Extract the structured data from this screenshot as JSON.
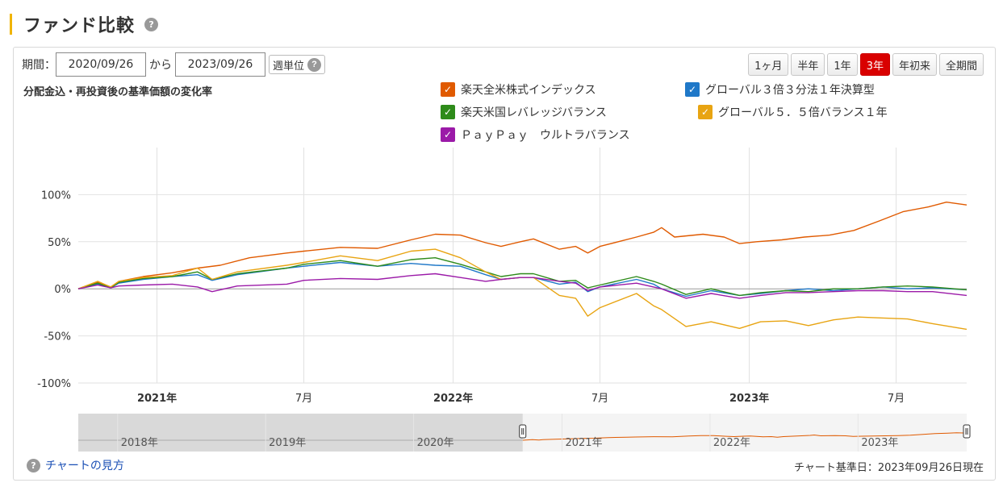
{
  "page_title": "ファンド比較",
  "help_glyph": "?",
  "period": {
    "label": "期間：",
    "start": "2020/09/26",
    "separator": "から",
    "end": "2023/09/26",
    "weekly_label": "週単位"
  },
  "range_buttons": [
    {
      "label": "1ヶ月",
      "active": false
    },
    {
      "label": "半年",
      "active": false
    },
    {
      "label": "1年",
      "active": false
    },
    {
      "label": "3年",
      "active": true
    },
    {
      "label": "年初来",
      "active": false
    },
    {
      "label": "全期間",
      "active": false
    }
  ],
  "chart_subtitle": "分配金込・再投資後の基準価額の変化率",
  "legend_check": "✓",
  "legend": [
    {
      "name": "楽天全米株式インデックス",
      "color": "#e05a00"
    },
    {
      "name": "グローバル３倍３分法１年決算型",
      "color": "#1f78c8"
    },
    {
      "name": "楽天米国レバレッジバランス",
      "color": "#2e8b1a"
    },
    {
      "name": "グローバル５．５倍バランス１年",
      "color": "#e8a412"
    },
    {
      "name": "ＰａｙＰａｙ　ウルトラバランス",
      "color": "#9b1aa8"
    }
  ],
  "chart_data": {
    "type": "line",
    "y_unit": "%",
    "ylim": [
      -100,
      150
    ],
    "y_ticks": [
      100,
      50,
      0,
      -50,
      -100
    ],
    "y_tick_labels": [
      "100%",
      "50%",
      "0%",
      "-50%",
      "-100%"
    ],
    "x_range": [
      "2020-09-26",
      "2023-09-26"
    ],
    "x_ticks": [
      {
        "date": "2021-01-01",
        "label": "2021年",
        "bold": true
      },
      {
        "date": "2021-07-01",
        "label": "7月",
        "bold": false
      },
      {
        "date": "2022-01-01",
        "label": "2022年",
        "bold": true
      },
      {
        "date": "2022-07-01",
        "label": "7月",
        "bold": false
      },
      {
        "date": "2023-01-01",
        "label": "2023年",
        "bold": true
      },
      {
        "date": "2023-07-01",
        "label": "7月",
        "bold": false
      }
    ],
    "grid": true,
    "series": [
      {
        "name": "楽天全米株式インデックス",
        "color": "#e05a00",
        "points": [
          [
            "2020-09-26",
            0
          ],
          [
            "2020-10-20",
            7
          ],
          [
            "2020-11-05",
            2
          ],
          [
            "2020-11-15",
            8
          ],
          [
            "2020-12-15",
            13
          ],
          [
            "2021-01-20",
            17
          ],
          [
            "2021-02-20",
            22
          ],
          [
            "2021-03-20",
            25
          ],
          [
            "2021-04-25",
            33
          ],
          [
            "2021-06-10",
            38
          ],
          [
            "2021-07-01",
            40
          ],
          [
            "2021-08-15",
            44
          ],
          [
            "2021-09-30",
            43
          ],
          [
            "2021-11-10",
            52
          ],
          [
            "2021-12-10",
            58
          ],
          [
            "2022-01-10",
            57
          ],
          [
            "2022-02-10",
            49
          ],
          [
            "2022-03-01",
            45
          ],
          [
            "2022-03-25",
            50
          ],
          [
            "2022-04-10",
            53
          ],
          [
            "2022-05-12",
            42
          ],
          [
            "2022-06-01",
            45
          ],
          [
            "2022-06-16",
            38
          ],
          [
            "2022-07-01",
            45
          ],
          [
            "2022-08-15",
            55
          ],
          [
            "2022-09-05",
            60
          ],
          [
            "2022-09-15",
            65
          ],
          [
            "2022-10-01",
            55
          ],
          [
            "2022-11-05",
            58
          ],
          [
            "2022-12-01",
            55
          ],
          [
            "2022-12-20",
            48
          ],
          [
            "2023-01-10",
            50
          ],
          [
            "2023-02-10",
            52
          ],
          [
            "2023-03-10",
            55
          ],
          [
            "2023-04-10",
            57
          ],
          [
            "2023-05-10",
            62
          ],
          [
            "2023-06-10",
            72
          ],
          [
            "2023-07-10",
            82
          ],
          [
            "2023-08-10",
            87
          ],
          [
            "2023-09-01",
            92
          ],
          [
            "2023-09-26",
            89
          ]
        ]
      },
      {
        "name": "グローバル３倍３分法１年決算型",
        "color": "#1f78c8",
        "points": [
          [
            "2020-09-26",
            0
          ],
          [
            "2020-10-20",
            5
          ],
          [
            "2020-11-05",
            1
          ],
          [
            "2020-11-15",
            6
          ],
          [
            "2020-12-15",
            10
          ],
          [
            "2021-01-20",
            13
          ],
          [
            "2021-02-20",
            15
          ],
          [
            "2021-03-10",
            9
          ],
          [
            "2021-04-10",
            15
          ],
          [
            "2021-06-10",
            22
          ],
          [
            "2021-07-01",
            24
          ],
          [
            "2021-08-15",
            28
          ],
          [
            "2021-09-30",
            24
          ],
          [
            "2021-11-10",
            27
          ],
          [
            "2021-12-10",
            25
          ],
          [
            "2022-01-10",
            24
          ],
          [
            "2022-02-10",
            15
          ],
          [
            "2022-03-01",
            10
          ],
          [
            "2022-03-25",
            12
          ],
          [
            "2022-04-10",
            12
          ],
          [
            "2022-05-12",
            5
          ],
          [
            "2022-06-01",
            7
          ],
          [
            "2022-06-16",
            -3
          ],
          [
            "2022-07-01",
            2
          ],
          [
            "2022-08-15",
            10
          ],
          [
            "2022-09-05",
            5
          ],
          [
            "2022-09-15",
            0
          ],
          [
            "2022-10-15",
            -8
          ],
          [
            "2022-11-15",
            -2
          ],
          [
            "2022-12-20",
            -7
          ],
          [
            "2023-01-15",
            -5
          ],
          [
            "2023-02-15",
            -2
          ],
          [
            "2023-03-15",
            0
          ],
          [
            "2023-04-15",
            -2
          ],
          [
            "2023-05-15",
            0
          ],
          [
            "2023-06-15",
            2
          ],
          [
            "2023-07-15",
            0
          ],
          [
            "2023-08-15",
            1
          ],
          [
            "2023-09-26",
            -1
          ]
        ]
      },
      {
        "name": "楽天米国レバレッジバランス",
        "color": "#2e8b1a",
        "points": [
          [
            "2020-09-26",
            0
          ],
          [
            "2020-10-20",
            6
          ],
          [
            "2020-11-05",
            1
          ],
          [
            "2020-11-15",
            7
          ],
          [
            "2020-12-15",
            11
          ],
          [
            "2021-01-20",
            13
          ],
          [
            "2021-02-20",
            18
          ],
          [
            "2021-03-10",
            10
          ],
          [
            "2021-04-10",
            16
          ],
          [
            "2021-06-10",
            22
          ],
          [
            "2021-07-01",
            26
          ],
          [
            "2021-08-15",
            30
          ],
          [
            "2021-09-30",
            24
          ],
          [
            "2021-11-10",
            31
          ],
          [
            "2021-12-10",
            33
          ],
          [
            "2022-01-10",
            26
          ],
          [
            "2022-02-10",
            18
          ],
          [
            "2022-03-01",
            13
          ],
          [
            "2022-03-25",
            16
          ],
          [
            "2022-04-10",
            16
          ],
          [
            "2022-05-12",
            8
          ],
          [
            "2022-06-01",
            9
          ],
          [
            "2022-06-16",
            1
          ],
          [
            "2022-07-01",
            4
          ],
          [
            "2022-08-15",
            13
          ],
          [
            "2022-09-05",
            8
          ],
          [
            "2022-09-15",
            5
          ],
          [
            "2022-10-15",
            -6
          ],
          [
            "2022-11-15",
            0
          ],
          [
            "2022-12-20",
            -7
          ],
          [
            "2023-01-15",
            -4
          ],
          [
            "2023-02-15",
            -2
          ],
          [
            "2023-03-15",
            -3
          ],
          [
            "2023-04-15",
            0
          ],
          [
            "2023-05-15",
            0
          ],
          [
            "2023-06-15",
            2
          ],
          [
            "2023-07-15",
            3
          ],
          [
            "2023-08-15",
            2
          ],
          [
            "2023-09-26",
            -1
          ]
        ]
      },
      {
        "name": "グローバル５．５倍バランス１年",
        "color": "#e8a412",
        "points": [
          [
            "2020-09-26",
            0
          ],
          [
            "2020-10-20",
            8
          ],
          [
            "2020-11-05",
            2
          ],
          [
            "2020-11-15",
            8
          ],
          [
            "2020-12-15",
            12
          ],
          [
            "2021-01-20",
            14
          ],
          [
            "2021-02-20",
            22
          ],
          [
            "2021-03-10",
            10
          ],
          [
            "2021-04-10",
            18
          ],
          [
            "2021-06-10",
            25
          ],
          [
            "2021-07-01",
            28
          ],
          [
            "2021-08-15",
            35
          ],
          [
            "2021-09-30",
            30
          ],
          [
            "2021-11-10",
            40
          ],
          [
            "2021-12-10",
            42
          ],
          [
            "2022-01-10",
            33
          ],
          [
            "2022-02-10",
            18
          ],
          [
            "2022-03-01",
            10
          ],
          [
            "2022-03-25",
            12
          ],
          [
            "2022-04-10",
            12
          ],
          [
            "2022-05-12",
            -7
          ],
          [
            "2022-06-01",
            -10
          ],
          [
            "2022-06-16",
            -29
          ],
          [
            "2022-07-01",
            -20
          ],
          [
            "2022-08-15",
            -5
          ],
          [
            "2022-09-05",
            -18
          ],
          [
            "2022-09-15",
            -22
          ],
          [
            "2022-10-15",
            -40
          ],
          [
            "2022-11-15",
            -35
          ],
          [
            "2022-12-20",
            -42
          ],
          [
            "2023-01-15",
            -35
          ],
          [
            "2023-02-15",
            -34
          ],
          [
            "2023-03-15",
            -39
          ],
          [
            "2023-04-15",
            -33
          ],
          [
            "2023-05-15",
            -30
          ],
          [
            "2023-06-15",
            -31
          ],
          [
            "2023-07-15",
            -32
          ],
          [
            "2023-08-15",
            -37
          ],
          [
            "2023-09-26",
            -43
          ]
        ]
      },
      {
        "name": "ＰａｙＰａｙ　ウルトラバランス",
        "color": "#9b1aa8",
        "points": [
          [
            "2020-09-26",
            0
          ],
          [
            "2020-10-20",
            4
          ],
          [
            "2020-11-05",
            1
          ],
          [
            "2020-11-15",
            3
          ],
          [
            "2020-12-15",
            4
          ],
          [
            "2021-01-20",
            5
          ],
          [
            "2021-02-20",
            2
          ],
          [
            "2021-03-10",
            -3
          ],
          [
            "2021-04-10",
            3
          ],
          [
            "2021-06-10",
            5
          ],
          [
            "2021-07-01",
            9
          ],
          [
            "2021-08-15",
            11
          ],
          [
            "2021-09-30",
            10
          ],
          [
            "2021-11-10",
            14
          ],
          [
            "2021-12-10",
            16
          ],
          [
            "2022-01-10",
            12
          ],
          [
            "2022-02-10",
            8
          ],
          [
            "2022-03-01",
            10
          ],
          [
            "2022-03-25",
            12
          ],
          [
            "2022-04-10",
            12
          ],
          [
            "2022-05-12",
            8
          ],
          [
            "2022-06-01",
            6
          ],
          [
            "2022-06-16",
            -2
          ],
          [
            "2022-07-01",
            2
          ],
          [
            "2022-08-15",
            6
          ],
          [
            "2022-09-05",
            2
          ],
          [
            "2022-09-15",
            0
          ],
          [
            "2022-10-15",
            -10
          ],
          [
            "2022-11-15",
            -5
          ],
          [
            "2022-12-20",
            -10
          ],
          [
            "2023-01-15",
            -7
          ],
          [
            "2023-02-15",
            -4
          ],
          [
            "2023-03-15",
            -4
          ],
          [
            "2023-04-15",
            -3
          ],
          [
            "2023-05-15",
            -2
          ],
          [
            "2023-06-15",
            -2
          ],
          [
            "2023-07-15",
            -3
          ],
          [
            "2023-08-15",
            -3
          ],
          [
            "2023-09-26",
            -7
          ]
        ]
      }
    ]
  },
  "navigator": {
    "year_labels": [
      {
        "date": "2018-01-01",
        "label": "2018年"
      },
      {
        "date": "2019-01-01",
        "label": "2019年"
      },
      {
        "date": "2020-01-01",
        "label": "2020年"
      },
      {
        "date": "2021-01-01",
        "label": "2021年"
      },
      {
        "date": "2022-01-01",
        "label": "2022年"
      },
      {
        "date": "2023-01-01",
        "label": "2023年"
      }
    ],
    "range": [
      "2017-09-26",
      "2023-09-26"
    ],
    "selected": [
      "2020-09-26",
      "2023-09-26"
    ]
  },
  "footer": {
    "help_link": "チャートの見方",
    "as_of": "チャート基準日：2023年09月26日現在"
  }
}
